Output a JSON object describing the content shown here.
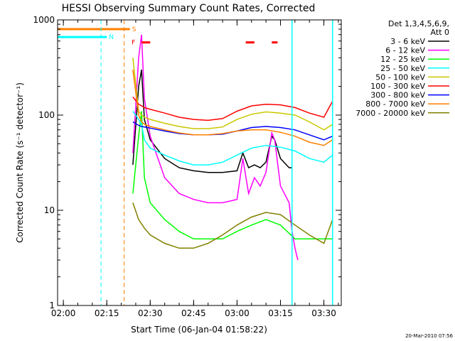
{
  "chart_data": {
    "type": "line",
    "title": "HESSI Observing Summary Count Rates, Corrected",
    "xlabel": "Start Time (06-Jan-04 01:58:22)",
    "ylabel": "Corrected Count Rate (s⁻¹ detector⁻¹)",
    "y_scale": "log",
    "ylim": [
      1,
      1000
    ],
    "xlim": [
      "01:58",
      "03:36"
    ],
    "x_ticks": [
      "02:00",
      "02:15",
      "02:30",
      "02:45",
      "03:00",
      "03:15",
      "03:30"
    ],
    "y_ticks": [
      "1",
      "10",
      "100",
      "1000"
    ],
    "legend_header": [
      "Det 1,3,4,5,6,9,",
      "Att 0"
    ],
    "legend_position": "right",
    "timestamp": "20-Mar-2010 07:56",
    "series": [
      {
        "name": "3 - 6 keV",
        "color": "#000000",
        "x": [
          "02:24",
          "02:26",
          "02:27",
          "02:28",
          "02:30",
          "02:35",
          "02:40",
          "02:45",
          "02:50",
          "02:55",
          "03:00",
          "03:02",
          "03:04",
          "03:06",
          "03:08",
          "03:10",
          "03:12",
          "03:13",
          "03:15",
          "03:18",
          "03:19"
        ],
        "y": [
          30,
          200,
          300,
          90,
          55,
          35,
          28,
          26,
          25,
          25,
          26,
          40,
          28,
          30,
          28,
          32,
          60,
          55,
          35,
          28,
          28
        ]
      },
      {
        "name": "6 - 12 keV",
        "color": "#ff00ff",
        "x": [
          "02:24",
          "02:26",
          "02:27",
          "02:28",
          "02:30",
          "02:35",
          "02:40",
          "02:45",
          "02:50",
          "02:55",
          "03:00",
          "03:02",
          "03:04",
          "03:06",
          "03:08",
          "03:10",
          "03:12",
          "03:13",
          "03:15",
          "03:18",
          "03:19",
          "03:20",
          "03:21"
        ],
        "y": [
          40,
          400,
          700,
          150,
          60,
          22,
          15,
          13,
          12,
          12,
          13,
          35,
          15,
          22,
          18,
          25,
          65,
          55,
          18,
          12,
          6,
          4,
          3
        ]
      },
      {
        "name": "12 - 25 keV",
        "color": "#00ff00",
        "x": [
          "02:24",
          "02:26",
          "02:27",
          "02:28",
          "02:30",
          "02:35",
          "02:40",
          "02:45",
          "02:50",
          "02:55",
          "03:00",
          "03:05",
          "03:10",
          "03:15",
          "03:20",
          "03:25",
          "03:30",
          "03:33"
        ],
        "y": [
          15,
          60,
          110,
          22,
          12,
          8,
          6,
          5,
          5,
          5,
          6,
          7,
          8,
          7,
          5,
          5,
          5,
          5
        ]
      },
      {
        "name": "25 - 50 keV",
        "color": "#00ffff",
        "x": [
          "02:24",
          "02:26",
          "02:27",
          "02:28",
          "02:30",
          "02:35",
          "02:40",
          "02:45",
          "02:50",
          "02:55",
          "03:00",
          "03:05",
          "03:10",
          "03:15",
          "03:20",
          "03:25",
          "03:30",
          "03:33"
        ],
        "y": [
          110,
          90,
          80,
          55,
          45,
          38,
          33,
          30,
          30,
          32,
          38,
          45,
          48,
          46,
          42,
          35,
          32,
          38
        ]
      },
      {
        "name": "50 - 100 keV",
        "color": "#c8c800",
        "x": [
          "02:24",
          "02:26",
          "02:27",
          "02:28",
          "02:30",
          "02:35",
          "02:40",
          "02:45",
          "02:50",
          "02:55",
          "03:00",
          "03:05",
          "03:10",
          "03:15",
          "03:20",
          "03:25",
          "03:30",
          "03:33"
        ],
        "y": [
          400,
          110,
          100,
          95,
          90,
          82,
          76,
          72,
          72,
          75,
          90,
          102,
          108,
          105,
          100,
          85,
          70,
          80
        ]
      },
      {
        "name": "100 - 300 keV",
        "color": "#ff0000",
        "x": [
          "02:24",
          "02:26",
          "02:27",
          "02:28",
          "02:30",
          "02:35",
          "02:40",
          "02:45",
          "02:50",
          "02:55",
          "03:00",
          "03:05",
          "03:10",
          "03:15",
          "03:20",
          "03:25",
          "03:30",
          "03:33"
        ],
        "y": [
          155,
          130,
          125,
          120,
          115,
          105,
          95,
          90,
          88,
          92,
          110,
          125,
          130,
          128,
          120,
          105,
          95,
          140
        ]
      },
      {
        "name": "300 - 800 keV",
        "color": "#0000ff",
        "x": [
          "02:24",
          "02:26",
          "02:27",
          "02:28",
          "02:30",
          "02:35",
          "02:40",
          "02:45",
          "02:50",
          "02:55",
          "03:00",
          "03:05",
          "03:10",
          "03:15",
          "03:20",
          "03:25",
          "03:30",
          "03:33"
        ],
        "y": [
          85,
          78,
          76,
          75,
          73,
          68,
          64,
          62,
          62,
          63,
          68,
          74,
          76,
          74,
          70,
          62,
          55,
          60
        ]
      },
      {
        "name": "800 - 7000 keV",
        "color": "#ff8000",
        "x": [
          "02:24",
          "02:26",
          "02:27",
          "02:28",
          "02:30",
          "02:35",
          "02:40",
          "02:45",
          "02:50",
          "02:55",
          "03:00",
          "03:05",
          "03:10",
          "03:15",
          "03:20",
          "03:25",
          "03:30",
          "03:33"
        ],
        "y": [
          300,
          100,
          85,
          80,
          76,
          70,
          65,
          62,
          62,
          64,
          68,
          70,
          70,
          66,
          60,
          52,
          48,
          55
        ]
      },
      {
        "name": "7000 - 20000 keV",
        "color": "#808000",
        "x": [
          "02:24",
          "02:26",
          "02:28",
          "02:30",
          "02:35",
          "02:40",
          "02:45",
          "02:50",
          "02:55",
          "03:00",
          "03:05",
          "03:10",
          "03:15",
          "03:20",
          "03:25",
          "03:30",
          "03:33"
        ],
        "y": [
          12,
          8,
          6.5,
          5.5,
          4.5,
          4,
          4,
          4.5,
          5.5,
          7,
          8.5,
          9.5,
          9,
          7,
          5.5,
          4.5,
          8
        ]
      }
    ],
    "flags": [
      {
        "label": "S",
        "color": "#ff8000",
        "x_start": "01:58",
        "x_end": "02:23",
        "y": 800
      },
      {
        "label": "N",
        "color": "#00ffff",
        "x_start": "01:58",
        "x_end": "02:15",
        "y": 660
      },
      {
        "label": "F",
        "color": "#ff0000",
        "segments": [
          [
            "02:27",
            "02:30"
          ],
          [
            "03:03",
            "03:06"
          ],
          [
            "03:12",
            "03:14"
          ]
        ],
        "y": 580
      }
    ],
    "vertical_markers": [
      {
        "x": "02:13",
        "color": "#00ffff",
        "style": "dashed"
      },
      {
        "x": "02:21",
        "color": "#ff8000",
        "style": "dashed"
      },
      {
        "x": "03:33",
        "color": "#00ffff",
        "style": "dashed"
      },
      {
        "x": "03:19",
        "color": "#00ffff",
        "style": "solid"
      },
      {
        "x": "03:33",
        "color": "#00ffff",
        "style": "solid"
      }
    ]
  }
}
